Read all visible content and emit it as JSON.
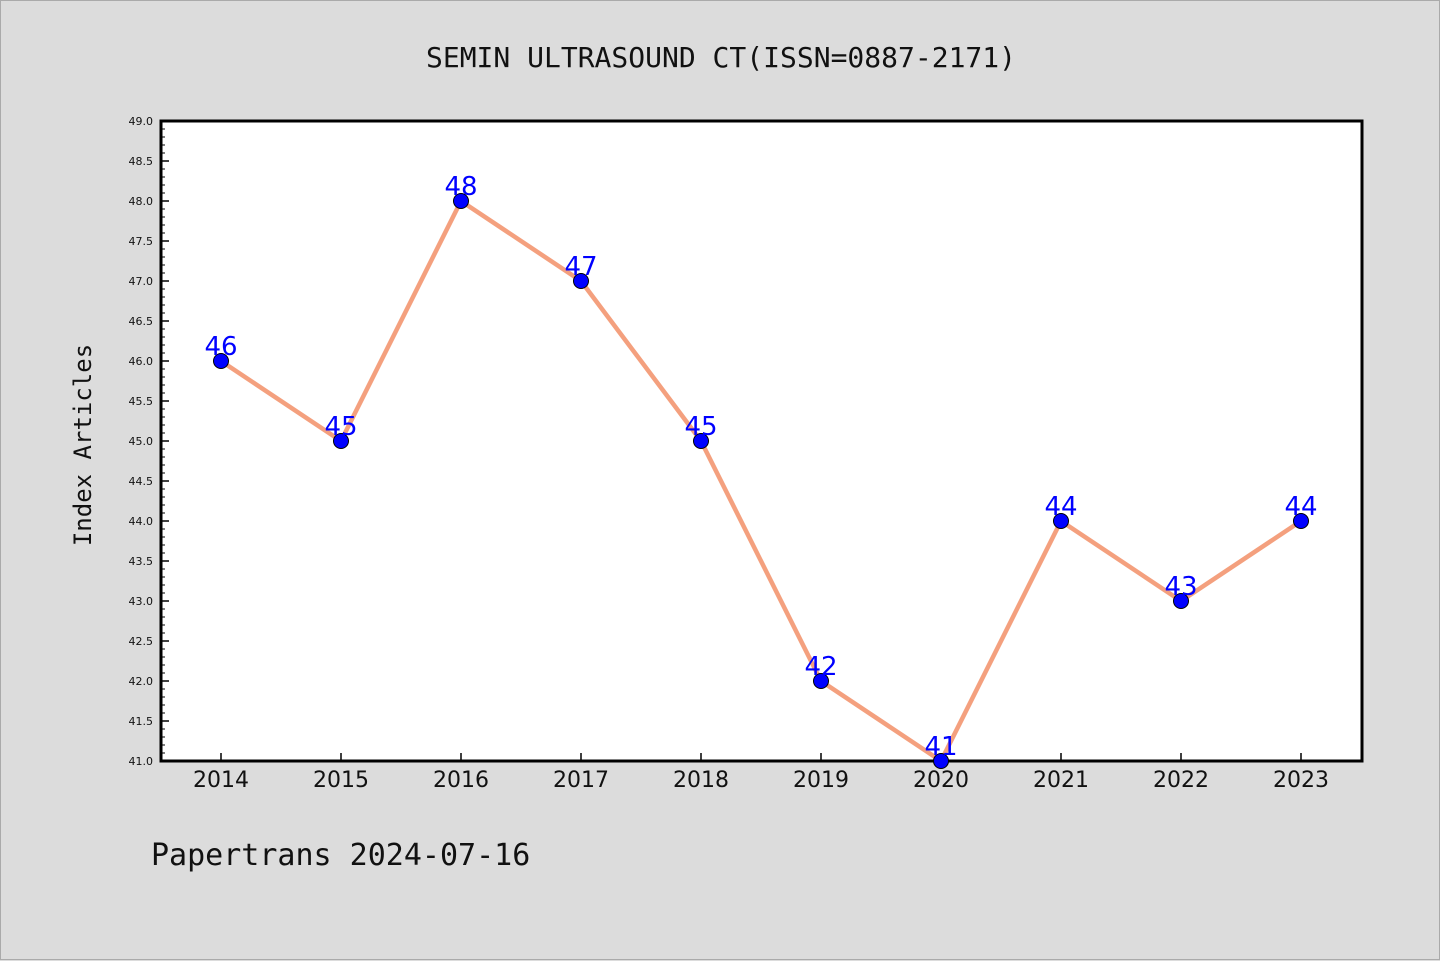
{
  "chart_data": {
    "type": "line",
    "title": "SEMIN ULTRASOUND CT(ISSN=0887-2171)",
    "xlabel": "",
    "ylabel": "Index Articles",
    "categories": [
      "2014",
      "2015",
      "2016",
      "2017",
      "2018",
      "2019",
      "2020",
      "2021",
      "2022",
      "2023"
    ],
    "series": [
      {
        "values": [
          46,
          45,
          48,
          47,
          45,
          42,
          41,
          44,
          43,
          44
        ]
      }
    ],
    "ylim": [
      41.0,
      49.0
    ],
    "y_ticks": [
      "41.0",
      "41.5",
      "42.0",
      "42.5",
      "43.0",
      "43.5",
      "44.0",
      "44.5",
      "45.0",
      "45.5",
      "46.0",
      "46.5",
      "47.0",
      "47.5",
      "48.0",
      "48.5",
      "49.0"
    ],
    "grid": false,
    "line_color": "#f4a07e",
    "marker_color": "#0000ff",
    "label_color": "#0000ff"
  },
  "footer": {
    "text": "Papertrans 2024-07-16"
  }
}
